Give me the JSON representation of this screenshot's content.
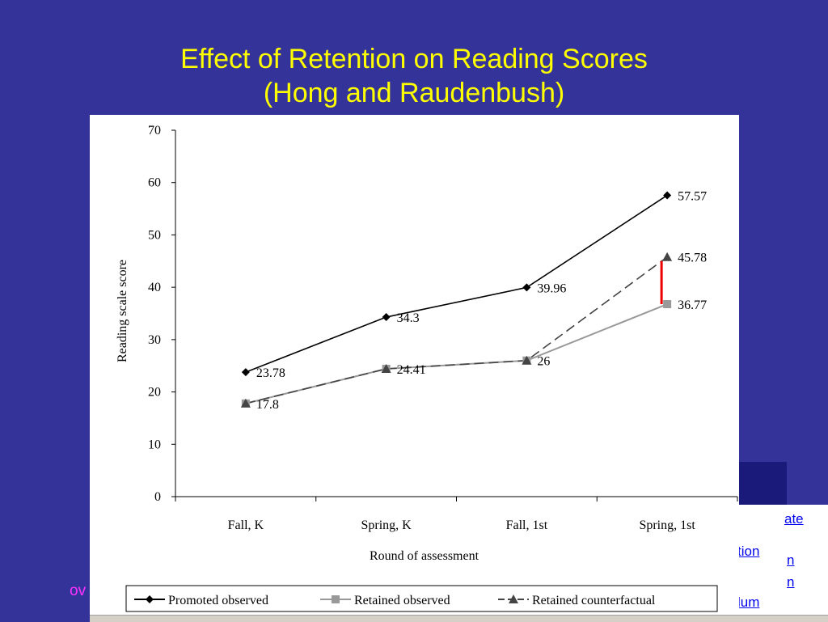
{
  "slide": {
    "title_line1": "Effect of Retention on Reading Scores",
    "title_line2": "(Hong and Raudenbush)",
    "background_color": "#333399",
    "title_color": "#ffff00"
  },
  "background_fragments": {
    "magenta_text": "ov",
    "links": [
      "ate",
      "tion",
      "n",
      "n",
      "lum"
    ]
  },
  "chart_data": {
    "type": "line",
    "title": "",
    "xlabel": "Round of assessment",
    "ylabel": "Reading scale score",
    "categories": [
      "Fall, K",
      "Spring, K",
      "Fall, 1st",
      "Spring, 1st"
    ],
    "ylim": [
      0,
      70
    ],
    "yticks": [
      0,
      10,
      20,
      30,
      40,
      50,
      60,
      70
    ],
    "grid": false,
    "legend_position": "bottom",
    "series": [
      {
        "name": "Promoted observed",
        "values": [
          23.78,
          34.3,
          39.96,
          57.57
        ],
        "labels": [
          "23.78",
          "34.3",
          "39.96",
          "57.57"
        ],
        "color": "#000000",
        "marker": "diamond",
        "dash": "solid"
      },
      {
        "name": "Retained observed",
        "values": [
          17.8,
          24.41,
          26,
          36.77
        ],
        "labels": [
          "",
          "",
          "",
          "36.77"
        ],
        "color": "#999999",
        "marker": "square",
        "dash": "solid"
      },
      {
        "name": "Retained counterfactual",
        "values": [
          17.8,
          24.41,
          26,
          45.78
        ],
        "labels": [
          "17.8",
          "24.41",
          "26",
          "45.78"
        ],
        "color": "#444444",
        "marker": "triangle",
        "dash": "dashed"
      }
    ],
    "annotation": {
      "type": "effect-bar",
      "category": "Spring, 1st",
      "from": 36.77,
      "to": 45.78,
      "color": "#ee0000"
    }
  }
}
